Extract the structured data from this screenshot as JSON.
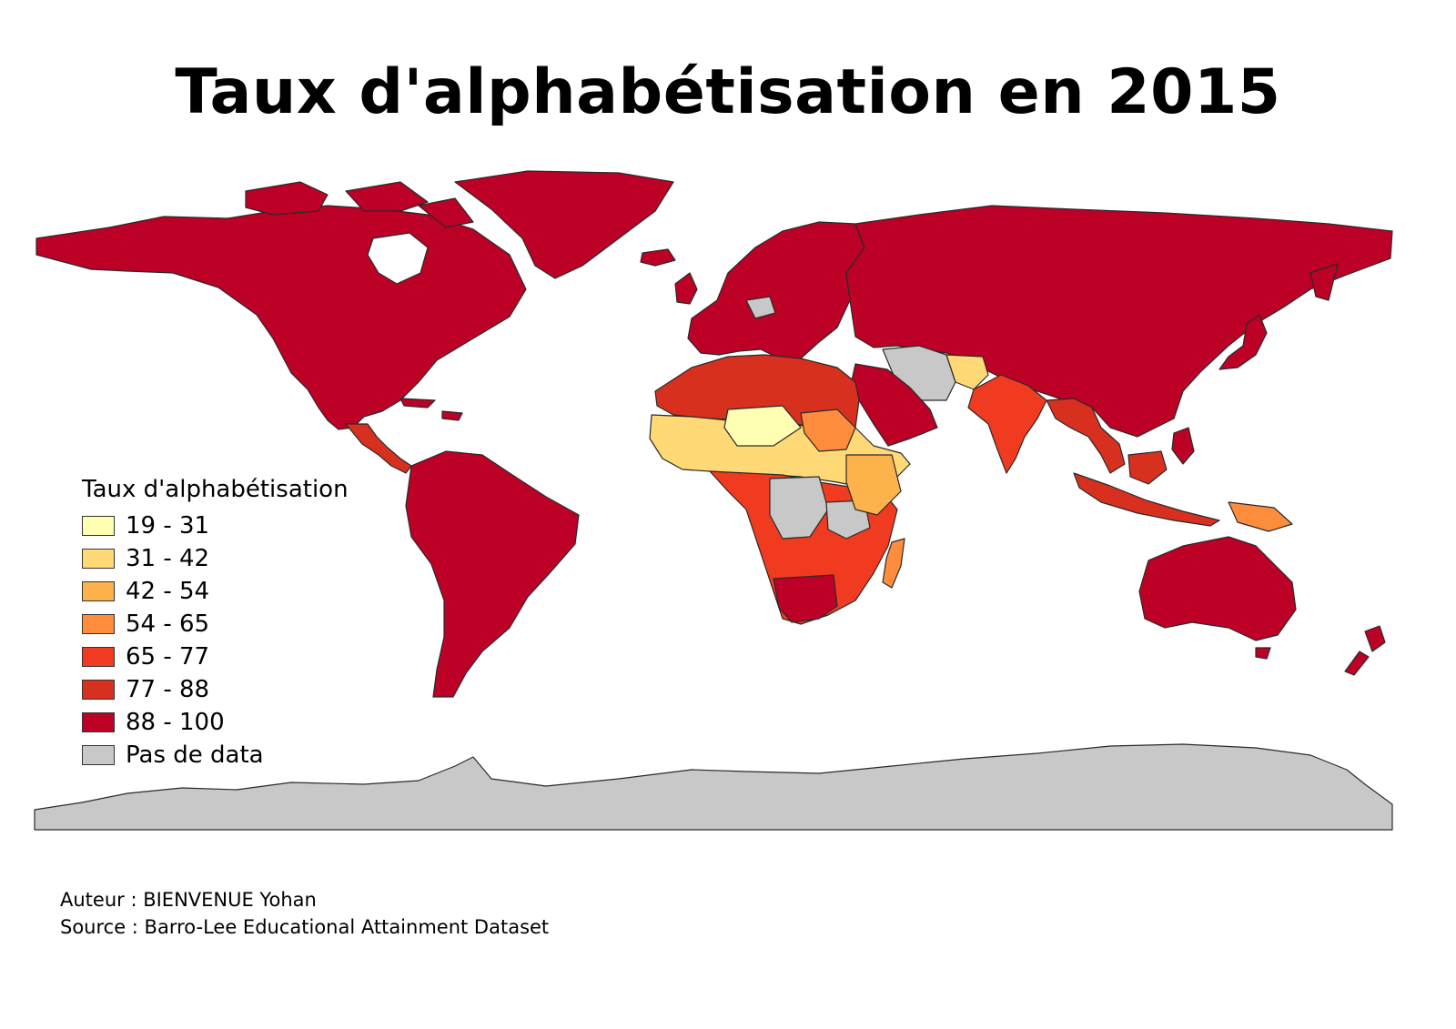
{
  "title": "Taux d'alphabétisation en 2015",
  "legend": {
    "title": "Taux d'alphabétisation",
    "classes": [
      {
        "label": "19 - 31",
        "color": "#ffffb2"
      },
      {
        "label": "31 - 42",
        "color": "#fed976"
      },
      {
        "label": "42 - 54",
        "color": "#feb24c"
      },
      {
        "label": "54 - 65",
        "color": "#fd8d3c"
      },
      {
        "label": "65 - 77",
        "color": "#f03b20"
      },
      {
        "label": "77 - 88",
        "color": "#d7301f"
      },
      {
        "label": "88 - 100",
        "color": "#bd0026"
      },
      {
        "label": "Pas de data",
        "color": "#c8c8c8"
      }
    ]
  },
  "credits": {
    "author": "Auteur : BIENVENUE Yohan",
    "source": "Source : Barro-Lee Educational Attainment Dataset"
  }
}
